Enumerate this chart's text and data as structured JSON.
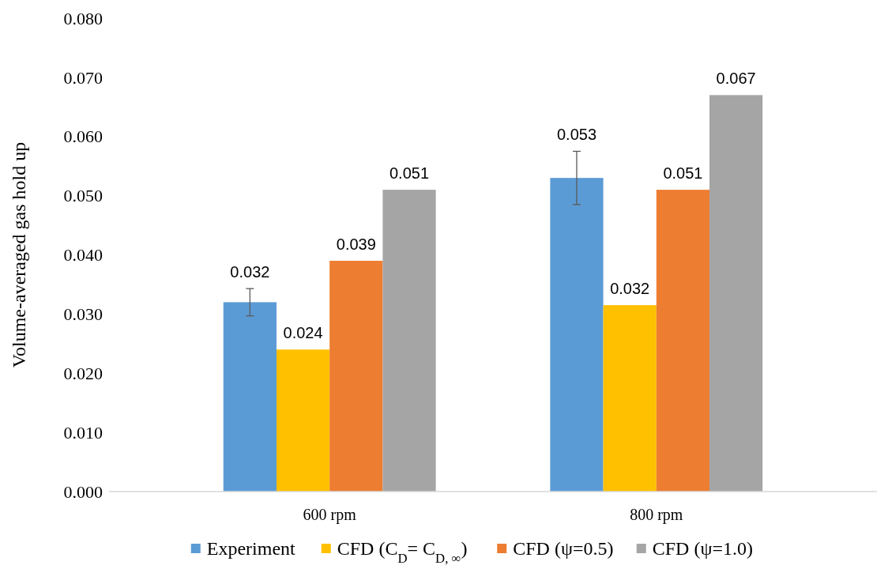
{
  "chart_data": {
    "type": "bar",
    "ylabel": "Volume-averaged gas hold up",
    "categories": [
      "600 rpm",
      "800 rpm"
    ],
    "series": [
      {
        "name": "Experiment",
        "color": "#5b9bd5",
        "values": [
          0.032,
          0.053
        ],
        "errors": [
          0.0023,
          0.0045
        ],
        "value_labels": [
          "0.032",
          "0.053"
        ]
      },
      {
        "name": "CFD (C$_{D}$= C$_{D, ∞}$)",
        "color": "#ffc000",
        "values": [
          0.024,
          0.0315
        ],
        "value_labels": [
          "0.024",
          "0.032"
        ]
      },
      {
        "name": "CFD (ψ=0.5)",
        "color": "#ed7d31",
        "values": [
          0.039,
          0.051
        ],
        "value_labels": [
          "0.039",
          "0.051"
        ]
      },
      {
        "name": "CFD (ψ=1.0)",
        "color": "#a5a5a5",
        "values": [
          0.051,
          0.067
        ],
        "value_labels": [
          "0.051",
          "0.067"
        ]
      }
    ],
    "ylim": [
      0,
      0.08
    ],
    "yticks": [
      {
        "value": 0,
        "label": "0.000"
      },
      {
        "value": 0.01,
        "label": "0.010"
      },
      {
        "value": 0.02,
        "label": "0.020"
      },
      {
        "value": 0.03,
        "label": "0.030"
      },
      {
        "value": 0.04,
        "label": "0.040"
      },
      {
        "value": 0.05,
        "label": "0.050"
      },
      {
        "value": 0.06,
        "label": "0.060"
      },
      {
        "value": 0.07,
        "label": "0.070"
      },
      {
        "value": 0.08,
        "label": "0.080"
      }
    ],
    "grid": false,
    "legend": "bottom"
  }
}
